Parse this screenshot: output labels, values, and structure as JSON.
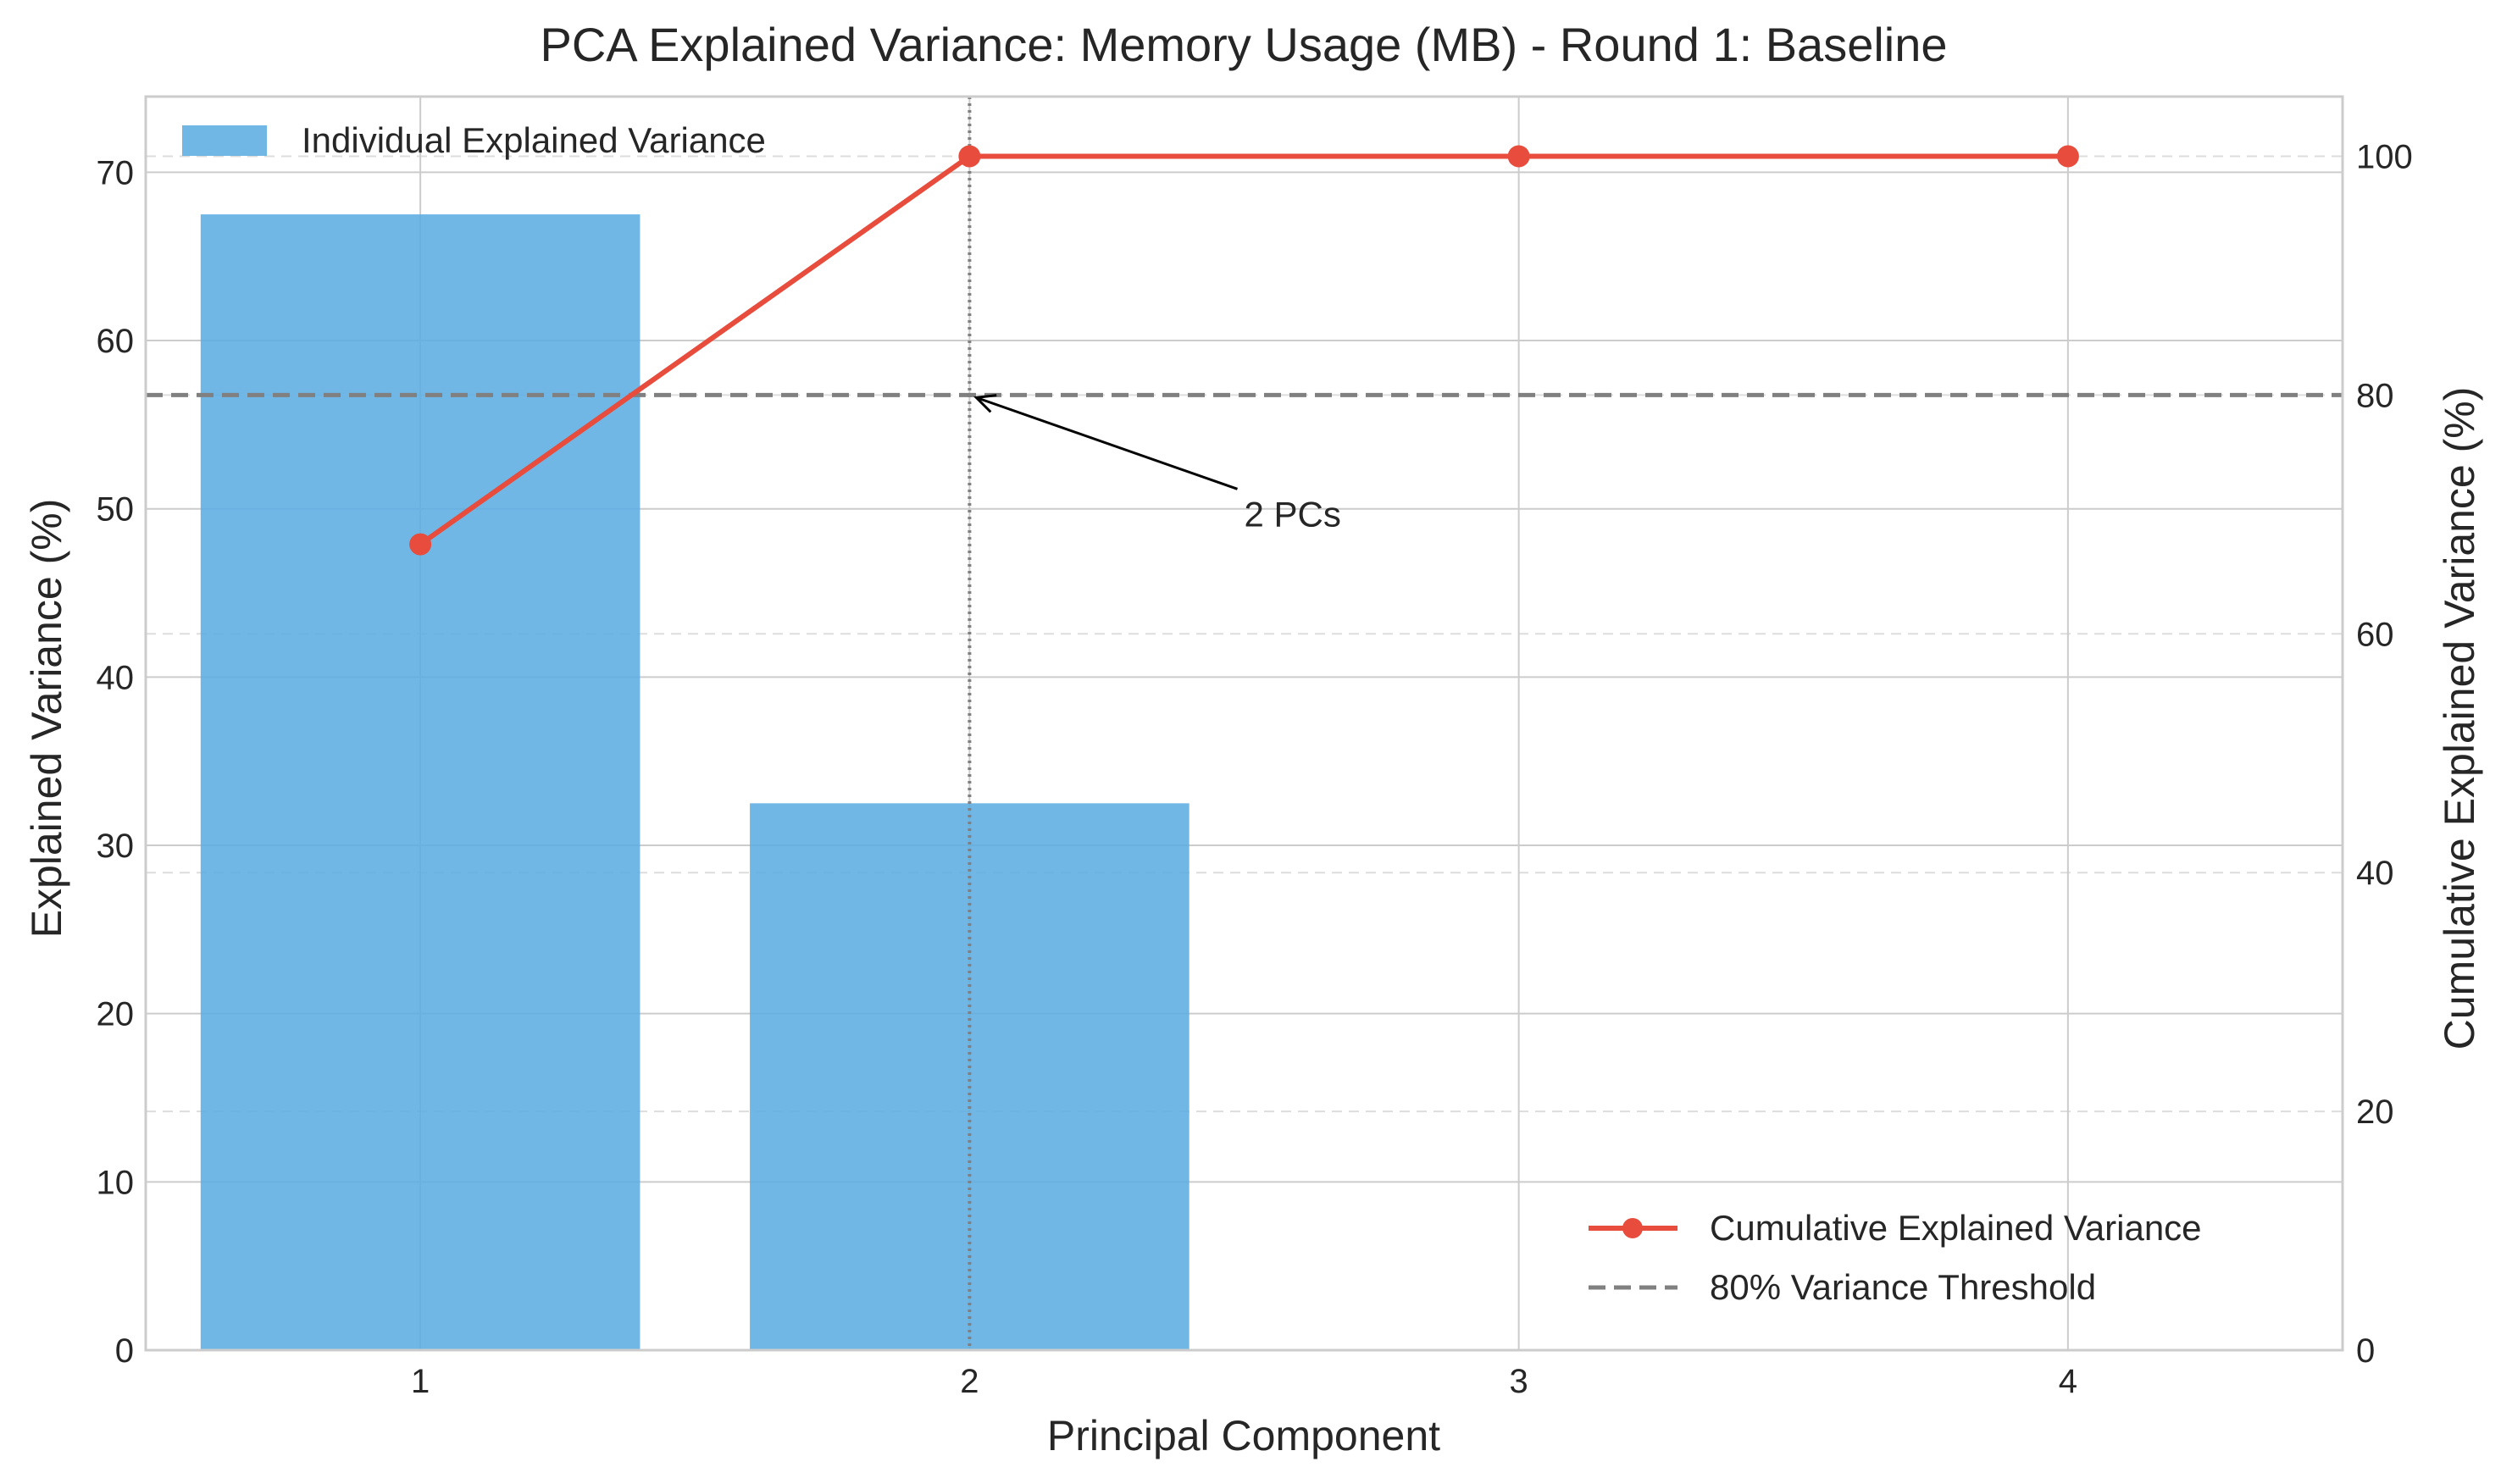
{
  "chart_data": {
    "type": "bar",
    "title": "PCA Explained Variance: Memory Usage (MB) - Round 1: Baseline",
    "xlabel": "Principal Component",
    "ylabel": "Explained Variance (%)",
    "y2label": "Cumulative Explained Variance (%)",
    "categories": [
      "1",
      "2",
      "3",
      "4"
    ],
    "x": [
      1,
      2,
      3,
      4
    ],
    "xlim": [
      0.5,
      4.5
    ],
    "ylim": [
      0,
      74.5
    ],
    "y2lim": [
      0,
      105
    ],
    "yticks": [
      0,
      10,
      20,
      30,
      40,
      50,
      60,
      70
    ],
    "y2ticks": [
      0,
      20,
      40,
      60,
      80,
      100
    ],
    "grid": true,
    "series": [
      {
        "name": "Individual Explained Variance",
        "type": "bar",
        "axis": "left",
        "values": [
          67.5,
          32.5,
          0,
          0
        ],
        "color": "#5DADE2"
      },
      {
        "name": "Cumulative Explained Variance",
        "type": "line",
        "axis": "right",
        "values": [
          67.5,
          100,
          100,
          100
        ],
        "color": "#E74C3C"
      }
    ],
    "threshold": {
      "name": "80% Variance Threshold",
      "value": 80,
      "axis": "right",
      "color": "#808080"
    },
    "vline": {
      "x": 2,
      "color": "#808080"
    },
    "annotation": {
      "text": "2 PCs",
      "x": 2.5,
      "y": 70,
      "axis": "right",
      "arrow_to": [
        2,
        80
      ]
    },
    "legend_upper": {
      "placement": "top-left",
      "entries": [
        "Individual Explained Variance"
      ]
    },
    "legend_lower": {
      "placement": "bottom-right",
      "entries": [
        "Cumulative Explained Variance",
        "80% Variance Threshold"
      ]
    }
  }
}
